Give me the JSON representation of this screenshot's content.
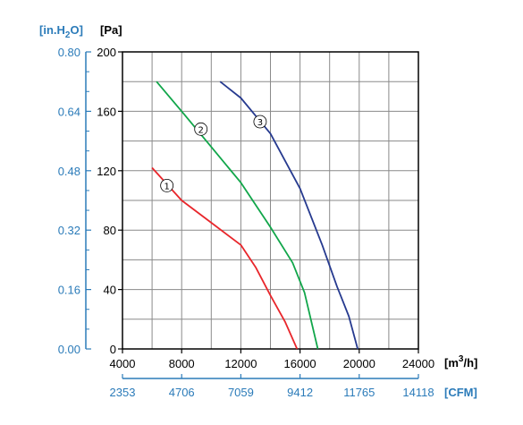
{
  "chart_data": {
    "type": "line",
    "x_axis": {
      "unit_main": "[m",
      "unit_sup": "3",
      "unit_end": "/h]",
      "ticks": [
        4000,
        8000,
        12000,
        16000,
        20000,
        24000
      ],
      "tick_labels": [
        "4000",
        "8000",
        "12000",
        "16000",
        "20000",
        "24000"
      ],
      "range": [
        4000,
        24000
      ]
    },
    "x2_axis": {
      "unit": "[CFM]",
      "tick_labels": [
        "2353",
        "4706",
        "7059",
        "9412",
        "11765",
        "14118"
      ]
    },
    "y_axis": {
      "unit": "[Pa]",
      "ticks": [
        0,
        40,
        80,
        120,
        160,
        200
      ],
      "tick_labels": [
        "0",
        "40",
        "80",
        "120",
        "160",
        "200"
      ],
      "range": [
        0,
        200
      ]
    },
    "y2_axis": {
      "unit_a": "[in.H",
      "unit_sub": "2",
      "unit_b": "O]",
      "tick_labels": [
        "0.00",
        "0.16",
        "0.32",
        "0.48",
        "0.64",
        "0.80"
      ]
    },
    "grid": true,
    "series": [
      {
        "name": "①",
        "color": "#e8262b",
        "x": [
          6000,
          8000,
          10000,
          12000,
          13000,
          14000,
          15000,
          15800
        ],
        "y": [
          122,
          100,
          85,
          70,
          55,
          36,
          18,
          0
        ]
      },
      {
        "name": "②",
        "color": "#11a64a",
        "x": [
          6300,
          8000,
          10000,
          12000,
          14000,
          15500,
          16300,
          17200
        ],
        "y": [
          180,
          160,
          136,
          112,
          82,
          58,
          38,
          0
        ]
      },
      {
        "name": "③",
        "color": "#263a8f",
        "x": [
          10600,
          12000,
          14000,
          16000,
          17500,
          18500,
          19300,
          19900
        ],
        "y": [
          180,
          169,
          145,
          108,
          70,
          42,
          22,
          0
        ]
      }
    ],
    "series_labels": [
      {
        "text": "①",
        "x": 7000,
        "y": 110
      },
      {
        "text": "②",
        "x": 9300,
        "y": 148
      },
      {
        "text": "③",
        "x": 13300,
        "y": 153
      }
    ]
  }
}
